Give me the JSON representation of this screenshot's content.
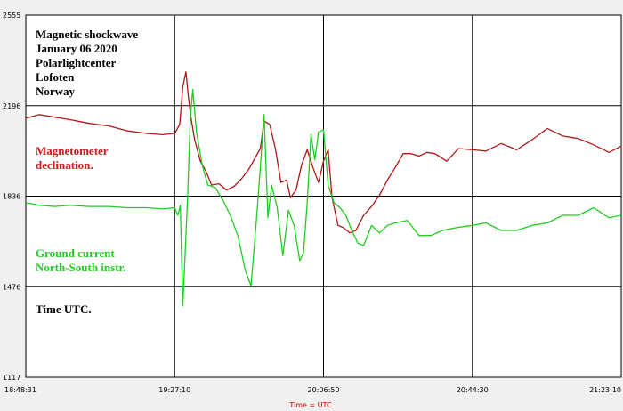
{
  "chart_data": {
    "type": "line",
    "xlabel": "Time = UTC",
    "x_ticks": [
      "18:48:31",
      "19:27:10",
      "20:06:50",
      "20:44:30",
      "21:23:10"
    ],
    "y_ticks": [
      "2555",
      "2196",
      "1836",
      "1476",
      "1117"
    ],
    "ylim": [
      1117,
      2555
    ],
    "grid": true,
    "annotations": {
      "title_lines": [
        "Magnetic shockwave",
        "January 06 2020",
        "Polarlightcenter",
        "Lofoten",
        "Norway"
      ],
      "magnetometer_lines": [
        "Magnetometer",
        "declination."
      ],
      "ground_current_lines": [
        "Ground current",
        "North-South instr."
      ],
      "time_note": "Time UTC."
    },
    "colors": {
      "magnetometer": "#b01818",
      "ground_current": "#22cc22",
      "grid": "#000000",
      "axis_label": "#cc0000"
    },
    "series": [
      {
        "key": "magnetometer",
        "x": [
          "18:48:31",
          "18:52:00",
          "18:56:00",
          "19:00:00",
          "19:05:00",
          "19:10:00",
          "19:15:00",
          "19:20:00",
          "19:24:00",
          "19:27:10",
          "19:28:30",
          "19:29:20",
          "19:30:10",
          "19:30:50",
          "19:31:30",
          "19:32:30",
          "19:34:00",
          "19:35:30",
          "19:37:00",
          "19:39:00",
          "19:41:00",
          "19:43:00",
          "19:45:00",
          "19:47:00",
          "19:48:30",
          "19:50:00",
          "19:51:00",
          "19:52:30",
          "19:54:00",
          "19:55:30",
          "19:57:00",
          "19:58:00",
          "19:59:30",
          "20:01:00",
          "20:02:30",
          "20:04:00",
          "20:05:30",
          "20:06:50",
          "20:08:00",
          "20:09:00",
          "20:10:30",
          "20:12:00",
          "20:13:30",
          "20:15:00",
          "20:17:00",
          "20:19:00",
          "20:21:00",
          "20:23:00",
          "20:25:00",
          "20:27:00",
          "20:29:00",
          "20:31:00",
          "20:33:00",
          "20:35:00",
          "20:38:00",
          "20:41:00",
          "20:44:30",
          "20:48:00",
          "20:52:00",
          "20:56:00",
          "21:00:00",
          "21:04:00",
          "21:08:00",
          "21:12:00",
          "21:16:00",
          "21:20:00",
          "21:23:10"
        ],
        "values": [
          2145,
          2160,
          2150,
          2140,
          2125,
          2115,
          2095,
          2085,
          2080,
          2085,
          2120,
          2270,
          2330,
          2230,
          2150,
          2060,
          1975,
          1935,
          1880,
          1885,
          1860,
          1875,
          1905,
          1945,
          1985,
          2025,
          2135,
          2120,
          2025,
          1890,
          1900,
          1830,
          1860,
          1960,
          2020,
          1950,
          1890,
          1975,
          2020,
          1830,
          1720,
          1710,
          1690,
          1700,
          1760,
          1795,
          1840,
          1900,
          1950,
          2005,
          2005,
          1995,
          2010,
          2005,
          1975,
          2025,
          2020,
          2015,
          2045,
          2020,
          2060,
          2105,
          2075,
          2065,
          2040,
          2010,
          2035
        ]
      },
      {
        "key": "ground_current",
        "x": [
          "18:48:31",
          "18:52:00",
          "18:56:00",
          "19:00:00",
          "19:05:00",
          "19:10:00",
          "19:15:00",
          "19:20:00",
          "19:24:00",
          "19:27:10",
          "19:28:00",
          "19:28:40",
          "19:29:20",
          "19:30:00",
          "19:30:40",
          "19:31:20",
          "19:32:00",
          "19:33:00",
          "19:34:30",
          "19:36:00",
          "19:38:00",
          "19:40:00",
          "19:42:00",
          "19:44:00",
          "19:46:00",
          "19:47:30",
          "19:49:00",
          "19:50:00",
          "19:51:00",
          "19:52:00",
          "19:53:00",
          "19:54:30",
          "19:56:00",
          "19:57:30",
          "19:59:00",
          "20:00:30",
          "20:01:30",
          "20:02:30",
          "20:03:30",
          "20:04:30",
          "20:05:30",
          "20:06:50",
          "20:08:00",
          "20:09:30",
          "20:11:00",
          "20:12:30",
          "20:14:00",
          "20:15:30",
          "20:17:00",
          "20:19:00",
          "20:21:00",
          "20:23:00",
          "20:25:00",
          "20:28:00",
          "20:31:00",
          "20:34:00",
          "20:37:00",
          "20:40:00",
          "20:44:30",
          "20:48:00",
          "20:52:00",
          "20:56:00",
          "21:00:00",
          "21:04:00",
          "21:08:00",
          "21:12:00",
          "21:16:00",
          "21:20:00",
          "21:23:10"
        ],
        "values": [
          1810,
          1800,
          1795,
          1800,
          1795,
          1795,
          1790,
          1790,
          1785,
          1790,
          1760,
          1800,
          1400,
          1620,
          1850,
          2140,
          2260,
          2090,
          1960,
          1880,
          1870,
          1820,
          1760,
          1680,
          1540,
          1480,
          1750,
          1950,
          2160,
          1750,
          1880,
          1790,
          1600,
          1780,
          1720,
          1580,
          1610,
          1810,
          2080,
          1980,
          2090,
          2100,
          1880,
          1810,
          1790,
          1760,
          1700,
          1650,
          1640,
          1720,
          1690,
          1720,
          1730,
          1740,
          1680,
          1680,
          1700,
          1710,
          1720,
          1730,
          1700,
          1700,
          1720,
          1730,
          1760,
          1760,
          1790,
          1750,
          1760
        ]
      }
    ]
  }
}
